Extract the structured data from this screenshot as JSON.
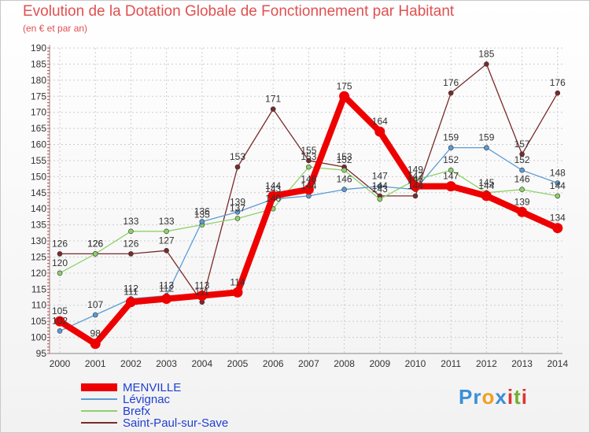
{
  "chart_data": {
    "type": "line",
    "title": "Evolution de la Dotation Globale de Fonctionnement par Habitant",
    "subtitle": "(en € et par an)",
    "xlabel": "",
    "ylabel": "",
    "categories": [
      "2000",
      "2001",
      "2002",
      "2003",
      "2004",
      "2005",
      "2006",
      "2007",
      "2008",
      "2009",
      "2010",
      "2011",
      "2012",
      "2013",
      "2014"
    ],
    "ylim": [
      95,
      190
    ],
    "yticks": [
      95,
      100,
      105,
      110,
      115,
      120,
      125,
      130,
      135,
      140,
      145,
      150,
      155,
      160,
      165,
      170,
      175,
      180,
      185,
      190
    ],
    "legend_position": "bottom-left",
    "series": [
      {
        "name": "MENVILLE",
        "color": "#ee0000",
        "values": [
          105,
          98,
          111,
          112,
          113,
          114,
          144,
          146,
          175,
          164,
          147,
          147,
          144,
          139,
          134
        ]
      },
      {
        "name": "Lévignac",
        "color": "#5b9bd5",
        "values": [
          102,
          107,
          112,
          113,
          136,
          139,
          143,
          144,
          146,
          147,
          146,
          159,
          159,
          152,
          148
        ]
      },
      {
        "name": "Brefx",
        "color": "#8fd16a",
        "values": [
          120,
          126,
          133,
          133,
          135,
          137,
          140,
          153,
          152,
          143,
          149,
          152,
          145,
          146,
          144
        ]
      },
      {
        "name": "Saint-Paul-sur-Save",
        "color": "#7a2a2a",
        "values": [
          126,
          126,
          126,
          127,
          111,
          153,
          171,
          155,
          153,
          144,
          144,
          176,
          185,
          157,
          176
        ]
      }
    ]
  },
  "logo": {
    "letters": [
      "P",
      "r",
      "o",
      "x",
      "i",
      "t",
      "i"
    ],
    "colors": [
      "#3a8fd8",
      "#3a8fd8",
      "#f0a020",
      "#3a8fd8",
      "#d33",
      "#70b030",
      "#d33"
    ]
  }
}
